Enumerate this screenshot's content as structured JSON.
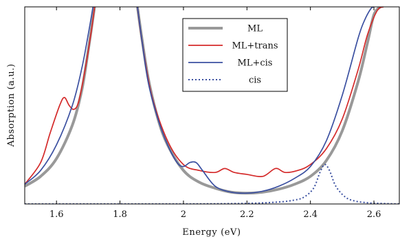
{
  "chart_data": {
    "type": "line",
    "title": "",
    "xlabel": "Energy (eV)",
    "ylabel": "Absorption (a.u.)",
    "xlim": [
      1.5,
      2.68
    ],
    "ylim": [
      0,
      1
    ],
    "y_ticks_shown": false,
    "x_ticks": [
      1.6,
      1.8,
      2.0,
      2.2,
      2.4,
      2.6
    ],
    "x_tick_labels": [
      "1.6",
      "1.8",
      "2",
      "2.2",
      "2.4",
      "2.6"
    ],
    "grid": false,
    "legend_position": "top-right",
    "series": [
      {
        "name": "ML",
        "color": "#999999",
        "style": "solid-thick",
        "x": [
          1.5,
          1.55,
          1.6,
          1.65,
          1.68,
          1.7,
          1.72,
          1.855,
          1.87,
          1.89,
          1.92,
          1.95,
          2.0,
          2.05,
          2.1,
          2.15,
          2.2,
          2.25,
          2.3,
          2.35,
          2.4,
          2.45,
          2.5,
          2.55,
          2.58,
          2.6,
          2.62
        ],
        "y": [
          0.09,
          0.14,
          0.23,
          0.4,
          0.58,
          0.78,
          1.0,
          1.0,
          0.83,
          0.63,
          0.43,
          0.3,
          0.17,
          0.11,
          0.08,
          0.06,
          0.055,
          0.06,
          0.075,
          0.1,
          0.14,
          0.22,
          0.37,
          0.62,
          0.82,
          0.96,
          1.0
        ]
      },
      {
        "name": "ML+trans",
        "color": "#d42a2a",
        "style": "solid",
        "x": [
          1.5,
          1.55,
          1.58,
          1.61,
          1.625,
          1.64,
          1.655,
          1.67,
          1.69,
          1.71,
          1.72,
          1.855,
          1.87,
          1.9,
          1.95,
          2.0,
          2.05,
          2.1,
          2.13,
          2.16,
          2.2,
          2.25,
          2.29,
          2.32,
          2.36,
          2.4,
          2.45,
          2.5,
          2.55,
          2.58,
          2.61,
          2.63
        ],
        "y": [
          0.1,
          0.21,
          0.36,
          0.5,
          0.54,
          0.5,
          0.48,
          0.52,
          0.68,
          0.88,
          1.0,
          1.0,
          0.82,
          0.55,
          0.32,
          0.2,
          0.17,
          0.16,
          0.18,
          0.16,
          0.15,
          0.14,
          0.18,
          0.16,
          0.17,
          0.2,
          0.28,
          0.43,
          0.68,
          0.86,
          0.98,
          1.0
        ]
      },
      {
        "name": "ML+cis",
        "color": "#3a4fa0",
        "style": "solid",
        "x": [
          1.5,
          1.55,
          1.6,
          1.65,
          1.68,
          1.7,
          1.715,
          1.855,
          1.87,
          1.89,
          1.92,
          1.95,
          1.98,
          2.0,
          2.02,
          2.04,
          2.06,
          2.1,
          2.15,
          2.2,
          2.25,
          2.3,
          2.35,
          2.4,
          2.45,
          2.5,
          2.55,
          2.57,
          2.59,
          2.6
        ],
        "y": [
          0.1,
          0.17,
          0.3,
          0.5,
          0.69,
          0.86,
          1.0,
          1.0,
          0.82,
          0.61,
          0.43,
          0.3,
          0.21,
          0.19,
          0.21,
          0.21,
          0.17,
          0.09,
          0.06,
          0.055,
          0.065,
          0.09,
          0.13,
          0.19,
          0.32,
          0.55,
          0.84,
          0.93,
          0.99,
          1.0
        ]
      },
      {
        "name": "cis",
        "color": "#3a4fa0",
        "style": "dotted",
        "x": [
          1.5,
          1.8,
          2.0,
          2.2,
          2.3,
          2.35,
          2.38,
          2.41,
          2.43,
          2.445,
          2.46,
          2.48,
          2.51,
          2.54,
          2.58,
          2.62,
          2.68
        ],
        "y": [
          0.0,
          0.0,
          0.0,
          0.003,
          0.01,
          0.02,
          0.035,
          0.08,
          0.16,
          0.2,
          0.17,
          0.09,
          0.035,
          0.015,
          0.006,
          0.003,
          0.0
        ]
      }
    ]
  }
}
